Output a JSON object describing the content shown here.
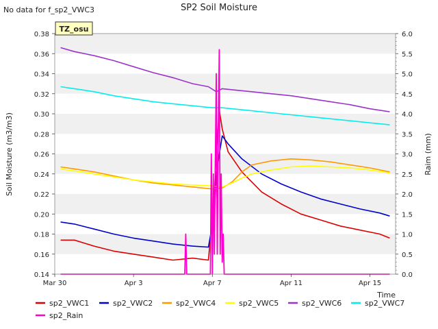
{
  "chart_data": {
    "type": "line",
    "title": "SP2 Soil Moisture",
    "nodata_note": "No data for f_sp2_VWC3",
    "site_badge": "TZ_osu",
    "xlabel": "Time",
    "ylabel": "Soil Moisture (m3/m3)",
    "y2label": "Raim (mm)",
    "xlim": [
      0,
      17.3
    ],
    "ylim": [
      0.14,
      0.38
    ],
    "y2lim": [
      0.0,
      6.0
    ],
    "x_tick_values": [
      0,
      4,
      8,
      12,
      16
    ],
    "x_tick_labels": [
      "Mar 30",
      "Apr 3",
      "Apr 7",
      "Apr 11",
      "Apr 15"
    ],
    "y_tick_labels": [
      "0.14",
      "0.16",
      "0.18",
      "0.20",
      "0.22",
      "0.24",
      "0.26",
      "0.28",
      "0.30",
      "0.32",
      "0.34",
      "0.36",
      "0.38"
    ],
    "y2_tick_labels": [
      "0.0",
      "0.5",
      "1.0",
      "1.5",
      "2.0",
      "2.5",
      "3.0",
      "3.5",
      "4.0",
      "4.5",
      "5.0",
      "5.5",
      "6.0"
    ],
    "grid": "horizontal alternating bands",
    "legend_position": "bottom",
    "series": [
      {
        "name": "sp2_VWC1",
        "color": "#dd0000",
        "axis": "left",
        "x": [
          0.3,
          1.0,
          2.0,
          3.0,
          4.0,
          5.0,
          6.0,
          7.0,
          7.8,
          8.1,
          8.2,
          8.35,
          8.5,
          8.8,
          9.5,
          10.5,
          11.5,
          12.5,
          13.5,
          14.5,
          15.5,
          16.5,
          17.0
        ],
        "y": [
          0.174,
          0.174,
          0.168,
          0.163,
          0.16,
          0.157,
          0.154,
          0.156,
          0.154,
          0.22,
          0.26,
          0.304,
          0.285,
          0.262,
          0.242,
          0.222,
          0.21,
          0.2,
          0.194,
          0.188,
          0.184,
          0.18,
          0.176
        ]
      },
      {
        "name": "sp2_VWC2",
        "color": "#0000cc",
        "axis": "left",
        "x": [
          0.3,
          1.0,
          2.0,
          3.0,
          4.0,
          5.0,
          6.0,
          7.0,
          7.8,
          8.1,
          8.2,
          8.5,
          8.8,
          9.5,
          10.5,
          11.5,
          12.5,
          13.5,
          14.5,
          15.5,
          16.5,
          17.0
        ],
        "y": [
          0.192,
          0.19,
          0.185,
          0.18,
          0.176,
          0.173,
          0.17,
          0.168,
          0.167,
          0.2,
          0.24,
          0.278,
          0.27,
          0.255,
          0.24,
          0.23,
          0.222,
          0.215,
          0.21,
          0.205,
          0.201,
          0.198
        ]
      },
      {
        "name": "sp2_VWC4",
        "color": "#ff9900",
        "axis": "left",
        "x": [
          0.3,
          1.0,
          2.0,
          3.0,
          4.0,
          5.0,
          6.0,
          7.0,
          8.0,
          8.5,
          9.0,
          9.5,
          10.0,
          11.0,
          12.0,
          13.0,
          14.0,
          15.0,
          16.0,
          17.0
        ],
        "y": [
          0.247,
          0.245,
          0.242,
          0.238,
          0.234,
          0.231,
          0.229,
          0.227,
          0.225,
          0.226,
          0.232,
          0.242,
          0.249,
          0.253,
          0.255,
          0.254,
          0.252,
          0.249,
          0.246,
          0.242
        ]
      },
      {
        "name": "sp2_VWC5",
        "color": "#ffff00",
        "axis": "left",
        "x": [
          0.3,
          1.0,
          2.0,
          3.0,
          4.0,
          5.0,
          6.0,
          7.0,
          8.0,
          8.5,
          9.0,
          9.5,
          10.0,
          11.0,
          12.0,
          13.0,
          14.0,
          15.0,
          16.0,
          17.0
        ],
        "y": [
          0.245,
          0.243,
          0.24,
          0.237,
          0.234,
          0.232,
          0.23,
          0.229,
          0.228,
          0.227,
          0.231,
          0.236,
          0.24,
          0.244,
          0.247,
          0.248,
          0.247,
          0.246,
          0.244,
          0.241
        ]
      },
      {
        "name": "sp2_VWC6",
        "color": "#9933cc",
        "axis": "left",
        "x": [
          0.3,
          1.0,
          2.0,
          3.0,
          4.0,
          5.0,
          6.0,
          7.0,
          7.8,
          8.2,
          8.5,
          9.0,
          10.0,
          11.0,
          12.0,
          13.0,
          14.0,
          15.0,
          16.0,
          17.0
        ],
        "y": [
          0.366,
          0.362,
          0.358,
          0.353,
          0.347,
          0.341,
          0.336,
          0.33,
          0.327,
          0.322,
          0.325,
          0.324,
          0.322,
          0.32,
          0.318,
          0.315,
          0.312,
          0.309,
          0.305,
          0.302
        ]
      },
      {
        "name": "sp2_VWC7",
        "color": "#00eeee",
        "axis": "left",
        "x": [
          0.3,
          1.0,
          2.0,
          3.0,
          4.0,
          5.0,
          6.0,
          7.0,
          8.0,
          8.5,
          9.0,
          10.0,
          11.0,
          12.0,
          13.0,
          14.0,
          15.0,
          16.0,
          17.0
        ],
        "y": [
          0.327,
          0.325,
          0.322,
          0.318,
          0.315,
          0.312,
          0.31,
          0.308,
          0.306,
          0.306,
          0.305,
          0.303,
          0.301,
          0.299,
          0.297,
          0.295,
          0.293,
          0.291,
          0.289
        ]
      },
      {
        "name": "sp2_Rain",
        "color": "#ff00cc",
        "axis": "right",
        "x": [
          0.3,
          6.6,
          6.65,
          6.7,
          7.9,
          7.95,
          8.0,
          8.05,
          8.1,
          8.2,
          8.25,
          8.3,
          8.35,
          8.4,
          8.45,
          8.5,
          8.55,
          8.6,
          17.0
        ],
        "y": [
          0.0,
          0.0,
          1.0,
          0.0,
          0.0,
          3.0,
          0.0,
          2.5,
          0.5,
          5.0,
          0.5,
          3.5,
          5.6,
          0.5,
          2.5,
          0.3,
          1.0,
          0.0,
          0.0
        ]
      }
    ]
  }
}
